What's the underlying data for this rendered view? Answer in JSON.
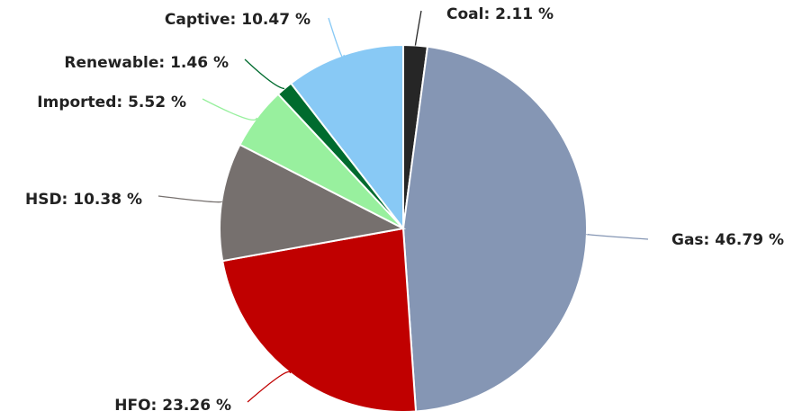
{
  "chart_data": {
    "type": "pie",
    "title": "",
    "start_angle_deg": 0,
    "slices": [
      {
        "name": "Coal",
        "value": 2.11,
        "label": "Coal: 2.11 %",
        "color": "#262626",
        "leader_color": "#262626"
      },
      {
        "name": "Gas",
        "value": 46.79,
        "label": "Gas: 46.79 %",
        "color": "#8596b4",
        "leader_color": "#8596b4"
      },
      {
        "name": "HFO",
        "value": 23.26,
        "label": "HFO: 23.26 %",
        "color": "#c00000",
        "leader_color": "#c00000"
      },
      {
        "name": "HSD",
        "value": 10.38,
        "label": "HSD: 10.38 %",
        "color": "#76706e",
        "leader_color": "#76706e"
      },
      {
        "name": "Imported",
        "value": 5.52,
        "label": "Imported: 5.52 %",
        "color": "#98f09e",
        "leader_color": "#98f09e"
      },
      {
        "name": "Renewable",
        "value": 1.46,
        "label": "Renewable: 1.46 %",
        "color": "#006b2e",
        "leader_color": "#006b2e"
      },
      {
        "name": "Captive",
        "value": 10.47,
        "label": "Captive: 10.47 %",
        "color": "#88c9f5",
        "leader_color": "#88c9f5"
      }
    ]
  }
}
